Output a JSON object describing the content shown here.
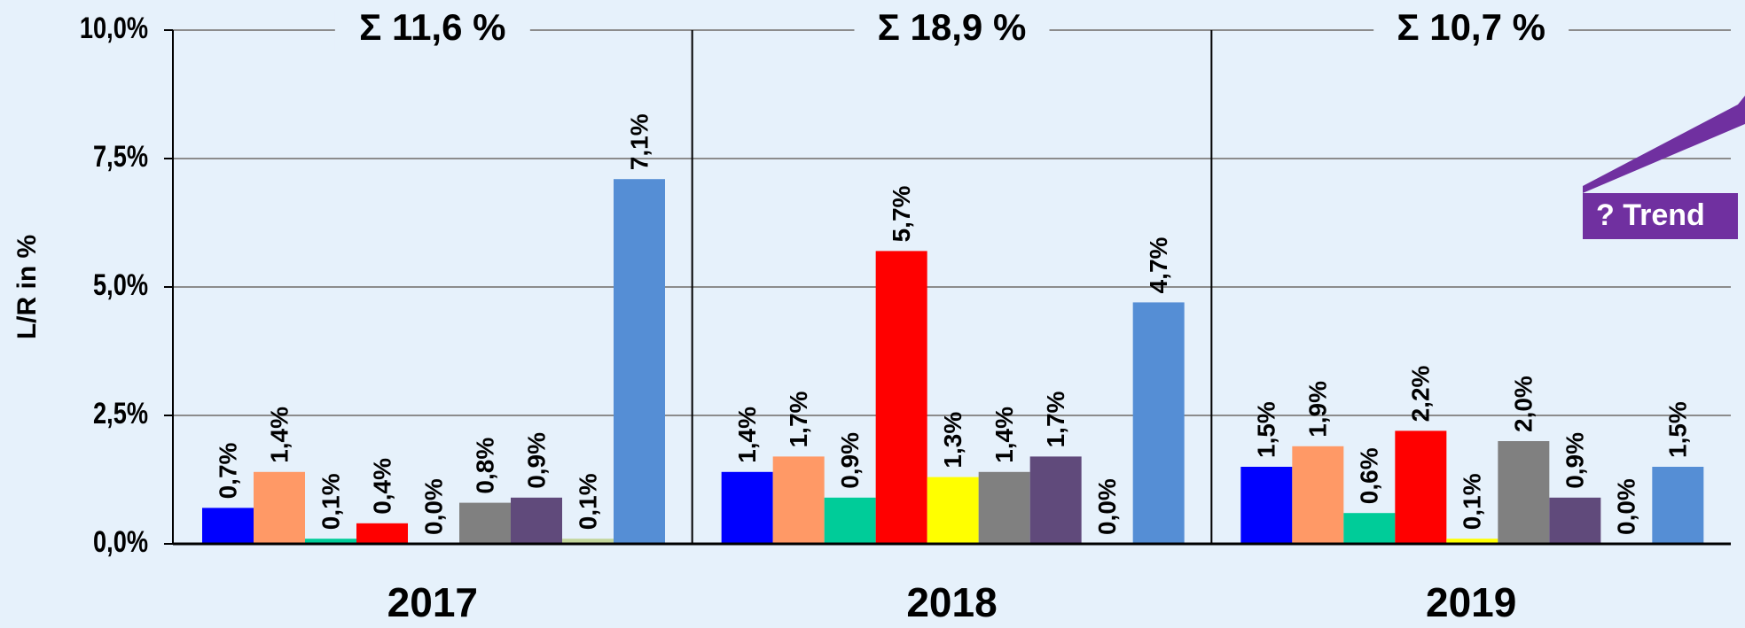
{
  "chart_data": {
    "type": "bar",
    "ylabel": "L/R in %",
    "categories": [
      "2017",
      "2018",
      "2019"
    ],
    "group_totals": [
      "Σ 11,6 %",
      "Σ 18,9 %",
      "Σ 10,7 %"
    ],
    "annotation": "? Trend",
    "ylim": [
      0,
      10
    ],
    "yticks": [
      {
        "value": 0,
        "label": "0,0%"
      },
      {
        "value": 2.5,
        "label": "2,5%"
      },
      {
        "value": 5,
        "label": "5,0%"
      },
      {
        "value": 7.5,
        "label": "7,5%"
      },
      {
        "value": 10,
        "label": "10,0%"
      }
    ],
    "grid": true,
    "series": [
      {
        "color": "#0000ff",
        "values": [
          0.7,
          1.4,
          1.5
        ],
        "value_labels": [
          "0,7%",
          "1,4%",
          "1,5%"
        ]
      },
      {
        "color": "#ff9966",
        "values": [
          1.4,
          1.7,
          1.9
        ],
        "value_labels": [
          "1,4%",
          "1,7%",
          "1,9%"
        ]
      },
      {
        "color": "#00cc99",
        "values": [
          0.1,
          0.9,
          0.6
        ],
        "value_labels": [
          "0,1%",
          "0,9%",
          "0,6%"
        ]
      },
      {
        "color": "#ff0000",
        "values": [
          0.4,
          5.7,
          2.2
        ],
        "value_labels": [
          "0,4%",
          "5,7%",
          "2,2%"
        ]
      },
      {
        "color": "#ffff00",
        "values": [
          0.0,
          1.3,
          0.1
        ],
        "value_labels": [
          "0,0%",
          "1,3%",
          "0,1%"
        ]
      },
      {
        "color": "#808080",
        "values": [
          0.8,
          1.4,
          2.0
        ],
        "value_labels": [
          "0,8%",
          "1,4%",
          "2,0%"
        ]
      },
      {
        "color": "#604a7b",
        "values": [
          0.9,
          1.7,
          0.9
        ],
        "value_labels": [
          "0,9%",
          "1,7%",
          "0,9%"
        ]
      },
      {
        "color": "#c3d69b",
        "values": [
          0.1,
          0.0,
          0.0
        ],
        "value_labels": [
          "0,1%",
          "0,0%",
          "0,0%"
        ]
      },
      {
        "color": "#558ed5",
        "values": [
          7.1,
          4.7,
          1.5
        ],
        "value_labels": [
          "7,1%",
          "4,7%",
          "1,5%"
        ]
      }
    ]
  }
}
